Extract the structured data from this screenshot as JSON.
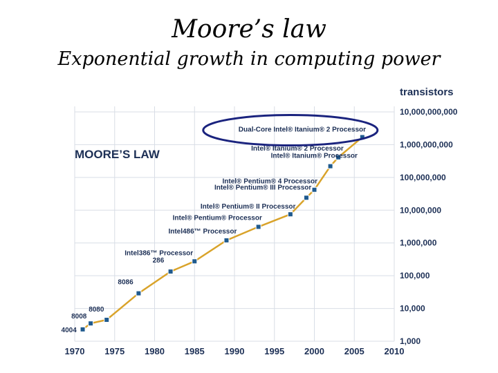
{
  "slide": {
    "title": "Moore’s law",
    "subtitle": "Exponential growth in computing power"
  },
  "chart_data": {
    "type": "line",
    "title": "MOORE’S LAW",
    "ylabel": "transistors",
    "xlabel": "",
    "y_scale": "log",
    "xlim": [
      1970,
      2010
    ],
    "ylim": [
      1000,
      10000000000
    ],
    "grid": true,
    "x_ticks": [
      "1970",
      "1975",
      "1980",
      "1985",
      "1990",
      "1995",
      "2000",
      "2005",
      "2010"
    ],
    "y_ticks": [
      "10,000,000,000",
      "1,000,000,000",
      "100,000,000",
      "10,000,000",
      "1,000,000",
      "100,000",
      "10,000",
      "1,000"
    ],
    "line_color": "#d9a32a",
    "marker_color": "#1f5a8e",
    "label_color": "#1c2f55",
    "highlight_color": "#1a237e",
    "highlighted_point": "Dual-Core Intel® Itanium® 2 Processor",
    "series": [
      {
        "points": [
          {
            "x": 1971,
            "y": 2300,
            "label": "4004"
          },
          {
            "x": 1972,
            "y": 3500,
            "label": "8008"
          },
          {
            "x": 1974,
            "y": 4500,
            "label": "8080"
          },
          {
            "x": 1978,
            "y": 29000,
            "label": "8086"
          },
          {
            "x": 1982,
            "y": 134000,
            "label": "286"
          },
          {
            "x": 1985,
            "y": 275000,
            "label": "Intel386™ Processor"
          },
          {
            "x": 1989,
            "y": 1200000,
            "label": "Intel486™ Processor"
          },
          {
            "x": 1993,
            "y": 3100000,
            "label": "Intel® Pentium® Processor"
          },
          {
            "x": 1997,
            "y": 7500000,
            "label": "Intel® Pentium® II Processor"
          },
          {
            "x": 1999,
            "y": 24000000,
            "label": "Intel® Pentium® III Processor"
          },
          {
            "x": 2000,
            "y": 42000000,
            "label": "Intel® Pentium® 4 Processor"
          },
          {
            "x": 2002,
            "y": 220000000,
            "label": "Intel® Itanium® Processor"
          },
          {
            "x": 2003,
            "y": 410000000,
            "label": "Intel® Itanium® 2 Processor"
          },
          {
            "x": 2006,
            "y": 1700000000,
            "label": "Dual-Core Intel® Itanium® 2 Processor"
          }
        ]
      }
    ]
  }
}
